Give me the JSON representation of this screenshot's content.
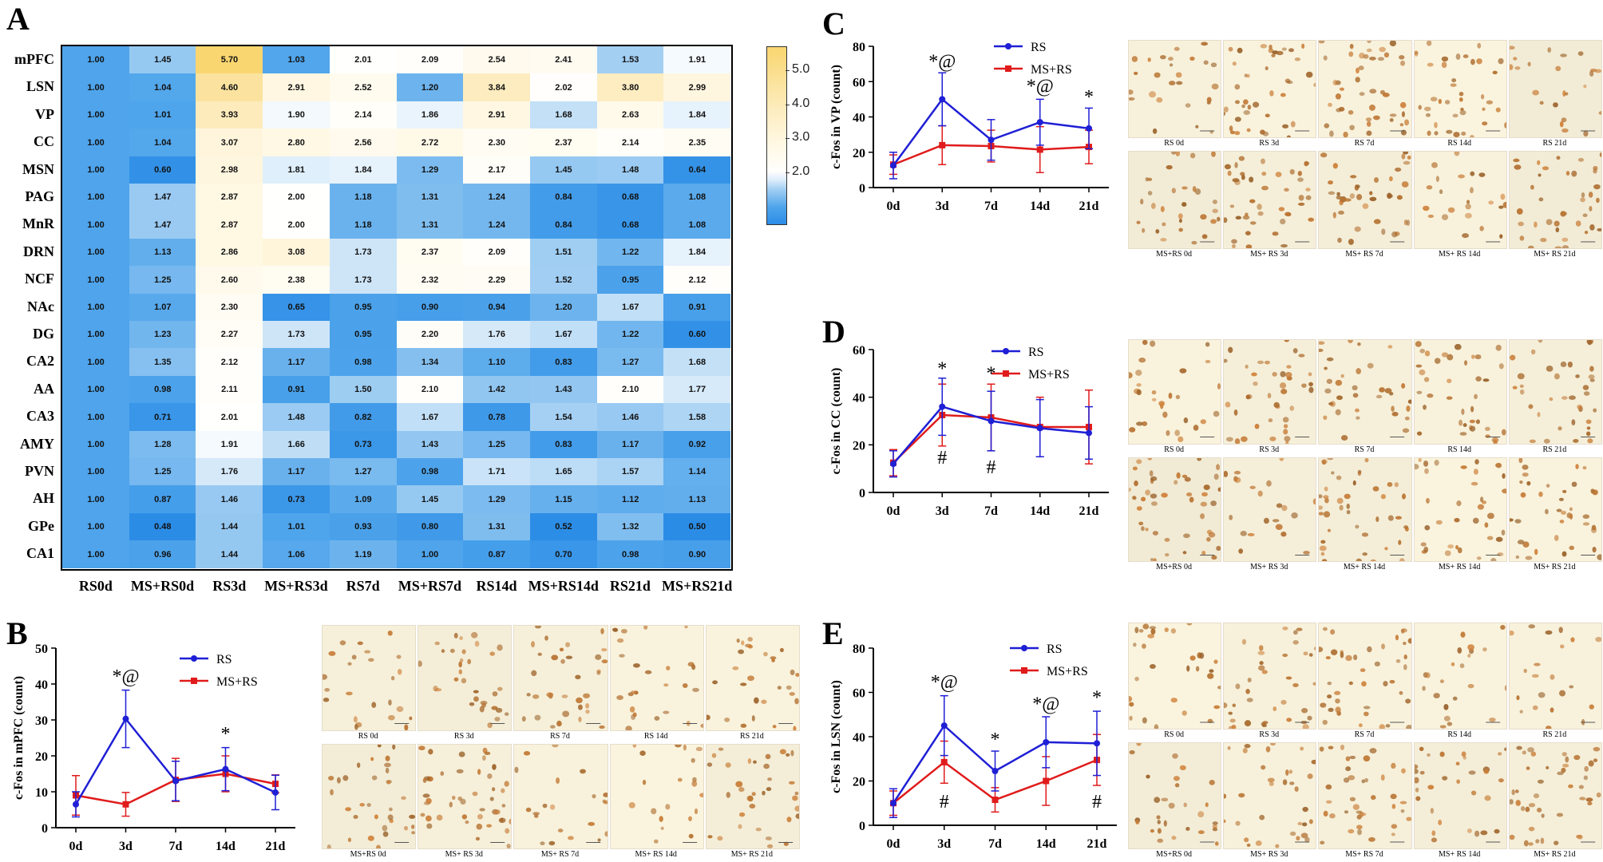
{
  "panels": {
    "a": "A",
    "b": "B",
    "c": "C",
    "d": "D",
    "e": "E"
  },
  "heatmap": {
    "rows": [
      "mPFC",
      "LSN",
      "VP",
      "CC",
      "MSN",
      "PAG",
      "MnR",
      "DRN",
      "NCF",
      "NAc",
      "DG",
      "CA2",
      "AA",
      "CA3",
      "AMY",
      "PVN",
      "AH",
      "GPe",
      "CA1"
    ],
    "cols": [
      "RS0d",
      "MS+RS0d",
      "RS3d",
      "MS+RS3d",
      "RS7d",
      "MS+RS7d",
      "RS14d",
      "MS+RS14d",
      "RS21d",
      "MS+RS21d"
    ],
    "values": [
      [
        1.0,
        1.45,
        5.7,
        1.03,
        2.01,
        2.09,
        2.54,
        2.41,
        1.53,
        1.91
      ],
      [
        1.0,
        1.04,
        4.6,
        2.91,
        2.52,
        1.2,
        3.84,
        2.02,
        3.8,
        2.99
      ],
      [
        1.0,
        1.01,
        3.93,
        1.9,
        2.14,
        1.86,
        2.91,
        1.68,
        2.63,
        1.84
      ],
      [
        1.0,
        1.04,
        3.07,
        2.8,
        2.56,
        2.72,
        2.3,
        2.37,
        2.14,
        2.35
      ],
      [
        1.0,
        0.6,
        2.98,
        1.81,
        1.84,
        1.29,
        2.17,
        1.45,
        1.48,
        0.64
      ],
      [
        1.0,
        1.47,
        2.87,
        2.0,
        1.18,
        1.31,
        1.24,
        0.84,
        0.68,
        1.08
      ],
      [
        1.0,
        1.47,
        2.87,
        2.0,
        1.18,
        1.31,
        1.24,
        0.84,
        0.68,
        1.08
      ],
      [
        1.0,
        1.13,
        2.86,
        3.08,
        1.73,
        2.37,
        2.09,
        1.51,
        1.22,
        1.84
      ],
      [
        1.0,
        1.25,
        2.6,
        2.38,
        1.73,
        2.32,
        2.29,
        1.52,
        0.95,
        2.12
      ],
      [
        1.0,
        1.07,
        2.3,
        0.65,
        0.95,
        0.9,
        0.94,
        1.2,
        1.67,
        0.91
      ],
      [
        1.0,
        1.23,
        2.27,
        1.73,
        0.95,
        2.2,
        1.76,
        1.67,
        1.22,
        0.6
      ],
      [
        1.0,
        1.35,
        2.12,
        1.17,
        0.98,
        1.34,
        1.1,
        0.83,
        1.27,
        1.68
      ],
      [
        1.0,
        0.98,
        2.11,
        0.91,
        1.5,
        2.1,
        1.42,
        1.43,
        2.1,
        1.77
      ],
      [
        1.0,
        0.71,
        2.01,
        1.48,
        0.82,
        1.67,
        0.78,
        1.54,
        1.46,
        1.58
      ],
      [
        1.0,
        1.28,
        1.91,
        1.66,
        0.73,
        1.43,
        1.25,
        0.83,
        1.17,
        0.92
      ],
      [
        1.0,
        1.25,
        1.76,
        1.17,
        1.27,
        0.98,
        1.71,
        1.65,
        1.57,
        1.14
      ],
      [
        1.0,
        0.87,
        1.46,
        0.73,
        1.09,
        1.45,
        1.29,
        1.15,
        1.12,
        1.13
      ],
      [
        1.0,
        0.48,
        1.44,
        1.01,
        0.93,
        0.8,
        1.31,
        0.52,
        1.32,
        0.5
      ],
      [
        1.0,
        0.96,
        1.44,
        1.06,
        1.19,
        1.0,
        0.87,
        0.7,
        0.98,
        0.9
      ]
    ],
    "colorbar_ticks": [
      "5.0",
      "4.0",
      "3.0",
      "2.0"
    ],
    "colorbar_values": [
      5.0,
      4.0,
      3.0,
      2.0
    ],
    "colorbar_range": [
      0.5,
      5.7
    ]
  },
  "chart_data": [
    {
      "type": "heatmap",
      "id": "A",
      "title": "",
      "note": "values in heatmap.values; rows = brain regions, cols = groups"
    },
    {
      "type": "line",
      "id": "B",
      "ylabel": "c-Fos in mPFC (count)",
      "categories": [
        "0d",
        "3d",
        "7d",
        "14d",
        "21d"
      ],
      "ylim": [
        0,
        50
      ],
      "yticks": [
        "0",
        "10",
        "20",
        "30",
        "40",
        "50"
      ],
      "ytick_values": [
        0,
        10,
        20,
        30,
        40,
        50
      ],
      "series": [
        {
          "name": "RS",
          "color": "#1f1fd6",
          "values": [
            6.5,
            30.3,
            13.0,
            16.3,
            9.8
          ],
          "errors": [
            3.5,
            8.0,
            5.5,
            6.0,
            4.8
          ]
        },
        {
          "name": "MS+RS",
          "color": "#e01b1b",
          "values": [
            9.0,
            6.5,
            13.3,
            15.0,
            12.2
          ],
          "errors": [
            5.5,
            3.3,
            6.0,
            5.0,
            2.5
          ]
        }
      ],
      "annotations": [
        {
          "x": "3d",
          "y": 40.5,
          "text": "*@"
        },
        {
          "x": "14d",
          "y": 24.5,
          "text": "*"
        }
      ]
    },
    {
      "type": "line",
      "id": "C",
      "ylabel": "c-Fos in VP (count)",
      "categories": [
        "0d",
        "3d",
        "7d",
        "14d",
        "21d"
      ],
      "ylim": [
        0,
        80
      ],
      "yticks": [
        "0",
        "20",
        "40",
        "60",
        "80"
      ],
      "ytick_values": [
        0,
        20,
        40,
        60,
        80
      ],
      "series": [
        {
          "name": "RS",
          "color": "#1f1fd6",
          "values": [
            12.5,
            50.0,
            27.0,
            37.0,
            33.5
          ],
          "errors": [
            7.5,
            15.0,
            11.5,
            13.0,
            11.5
          ]
        },
        {
          "name": "MS+RS",
          "color": "#e01b1b",
          "values": [
            13.0,
            24.0,
            23.5,
            21.5,
            23.0
          ],
          "errors": [
            5.5,
            11.0,
            9.0,
            13.0,
            9.5
          ]
        }
      ],
      "annotations": [
        {
          "x": "3d",
          "y": 68,
          "text": "*@"
        },
        {
          "x": "14d",
          "y": 54,
          "text": "*@"
        },
        {
          "x": "21d",
          "y": 48,
          "text": "*"
        }
      ]
    },
    {
      "type": "line",
      "id": "D",
      "ylabel": "c-Fos in CC (count)",
      "categories": [
        "0d",
        "3d",
        "7d",
        "14d",
        "21d"
      ],
      "ylim": [
        0,
        60
      ],
      "yticks": [
        "0",
        "20",
        "40",
        "60"
      ],
      "ytick_values": [
        0,
        20,
        40,
        60
      ],
      "series": [
        {
          "name": "RS",
          "color": "#1f1fd6",
          "values": [
            12.0,
            36.0,
            30.0,
            27.0,
            25.0
          ],
          "errors": [
            5.5,
            12.0,
            12.5,
            12.0,
            11.0
          ]
        },
        {
          "name": "MS+RS",
          "color": "#e01b1b",
          "values": [
            12.5,
            32.5,
            31.5,
            27.5,
            27.5
          ],
          "errors": [
            5.5,
            13.0,
            14.0,
            12.5,
            15.5
          ]
        }
      ],
      "annotations": [
        {
          "x": "3d",
          "y": 49.5,
          "text": "*"
        },
        {
          "x": "7d",
          "y": 47.5,
          "text": "*"
        },
        {
          "x": "3d",
          "y": 12.0,
          "text": "#"
        },
        {
          "x": "7d",
          "y": 8.0,
          "text": "#"
        }
      ]
    },
    {
      "type": "line",
      "id": "E",
      "ylabel": "c-Fos in LSN (count)",
      "categories": [
        "0d",
        "3d",
        "7d",
        "14d",
        "21d"
      ],
      "ylim": [
        0,
        80
      ],
      "yticks": [
        "0",
        "20",
        "40",
        "60",
        "80"
      ],
      "ytick_values": [
        0,
        20,
        40,
        60,
        80
      ],
      "series": [
        {
          "name": "RS",
          "color": "#1f1fd6",
          "values": [
            10.0,
            45.0,
            24.5,
            37.5,
            37.0
          ],
          "errors": [
            6.5,
            13.5,
            9.0,
            11.5,
            14.5
          ]
        },
        {
          "name": "MS+RS",
          "color": "#e01b1b",
          "values": [
            10.0,
            28.5,
            11.5,
            20.0,
            29.5
          ],
          "errors": [
            5.5,
            9.5,
            5.5,
            11.0,
            11.5
          ]
        }
      ],
      "annotations": [
        {
          "x": "3d",
          "y": 62,
          "text": "*@"
        },
        {
          "x": "7d",
          "y": 36,
          "text": "*"
        },
        {
          "x": "14d",
          "y": 52,
          "text": "*@"
        },
        {
          "x": "21d",
          "y": 55,
          "text": "*"
        },
        {
          "x": "3d",
          "y": 8,
          "text": "#"
        },
        {
          "x": "21d",
          "y": 8,
          "text": "#"
        }
      ]
    }
  ],
  "micrographs": {
    "B": {
      "top": [
        "RS 0d",
        "RS 3d",
        "RS 7d",
        "RS 14d",
        "RS 21d"
      ],
      "bottom": [
        "MS+RS 0d",
        "MS+ RS 3d",
        "MS+ RS 7d",
        "MS+ RS 14d",
        "MS+ RS 21d"
      ]
    },
    "C": {
      "top": [
        "RS 0d",
        "RS 3d",
        "RS 7d",
        "RS 14d",
        "RS 21d"
      ],
      "bottom": [
        "MS+RS 0d",
        "MS+ RS 3d",
        "MS+ RS 7d",
        "MS+ RS 14d",
        "MS+ RS 21d"
      ]
    },
    "D": {
      "top": [
        "RS 0d",
        "RS 3d",
        "RS 7d",
        "RS 14d",
        "RS 21d"
      ],
      "bottom": [
        "MS+RS 0d",
        "MS+ RS 3d",
        "MS+ RS 14d",
        "MS+ RS 14d",
        "MS+ RS 21d"
      ]
    },
    "E": {
      "top": [
        "RS 0d",
        "RS 3d",
        "RS 7d",
        "RS 14d",
        "RS 21d"
      ],
      "bottom": [
        "MS+RS 0d",
        "MS+ RS 3d",
        "MS+ RS 7d",
        "MS+ RS 14d",
        "MS+ RS 21d"
      ]
    }
  }
}
